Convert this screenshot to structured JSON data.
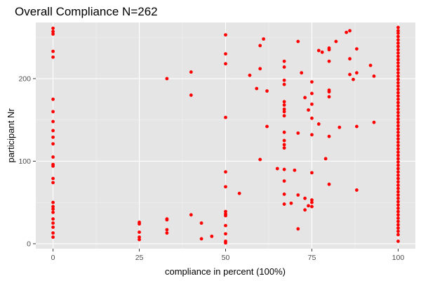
{
  "chart_data": {
    "type": "scatter",
    "title": "Overall Compliance N=262",
    "xlabel": "compliance in percent (100%)",
    "ylabel": "participant Nr",
    "xlim": [
      -5,
      105
    ],
    "ylim": [
      -6,
      268
    ],
    "x_ticks": [
      0,
      25,
      50,
      75,
      100
    ],
    "y_ticks": [
      0,
      100,
      200
    ],
    "grid": true,
    "legend": "none",
    "colors": {
      "point": "#ff0000",
      "panel": "#e5e5e5",
      "grid": "#ffffff"
    },
    "points": [
      [
        0,
        261
      ],
      [
        0,
        257
      ],
      [
        0,
        254
      ],
      [
        0,
        233
      ],
      [
        0,
        226
      ],
      [
        0,
        175
      ],
      [
        0,
        160
      ],
      [
        0,
        148
      ],
      [
        0,
        137
      ],
      [
        0,
        129
      ],
      [
        0,
        121
      ],
      [
        0,
        105
      ],
      [
        0,
        96
      ],
      [
        0,
        94
      ],
      [
        0,
        79
      ],
      [
        0,
        74
      ],
      [
        0,
        50
      ],
      [
        0,
        45
      ],
      [
        0,
        42
      ],
      [
        0,
        38
      ],
      [
        0,
        30
      ],
      [
        0,
        25
      ],
      [
        0,
        20
      ],
      [
        0,
        13
      ],
      [
        0,
        8
      ],
      [
        25,
        26
      ],
      [
        25,
        24
      ],
      [
        25,
        14
      ],
      [
        25,
        8
      ],
      [
        25,
        5
      ],
      [
        33,
        200
      ],
      [
        33,
        30
      ],
      [
        33,
        29
      ],
      [
        33,
        17
      ],
      [
        33,
        13
      ],
      [
        40,
        208
      ],
      [
        40,
        180
      ],
      [
        40,
        35
      ],
      [
        43,
        25
      ],
      [
        43,
        6
      ],
      [
        46,
        9
      ],
      [
        50,
        253
      ],
      [
        50,
        230
      ],
      [
        50,
        218
      ],
      [
        50,
        153
      ],
      [
        50,
        87
      ],
      [
        50,
        69
      ],
      [
        50,
        39
      ],
      [
        50,
        36
      ],
      [
        50,
        34
      ],
      [
        50,
        22
      ],
      [
        50,
        12
      ],
      [
        50,
        3
      ],
      [
        50,
        1
      ],
      [
        54,
        61
      ],
      [
        57,
        204
      ],
      [
        59,
        188
      ],
      [
        60,
        240
      ],
      [
        60,
        212
      ],
      [
        60,
        102
      ],
      [
        61,
        248
      ],
      [
        62,
        185
      ],
      [
        62,
        142
      ],
      [
        65,
        91
      ],
      [
        67,
        221
      ],
      [
        67,
        214
      ],
      [
        67,
        198
      ],
      [
        67,
        193
      ],
      [
        67,
        172
      ],
      [
        67,
        168
      ],
      [
        67,
        163
      ],
      [
        67,
        160
      ],
      [
        67,
        155
      ],
      [
        67,
        135
      ],
      [
        67,
        125
      ],
      [
        67,
        120
      ],
      [
        67,
        116
      ],
      [
        67,
        90
      ],
      [
        67,
        76
      ],
      [
        67,
        60
      ],
      [
        67,
        48
      ],
      [
        69,
        49
      ],
      [
        70,
        89
      ],
      [
        71,
        245
      ],
      [
        71,
        134
      ],
      [
        71,
        18
      ],
      [
        71,
        59
      ],
      [
        72,
        207
      ],
      [
        73,
        177
      ],
      [
        73,
        41
      ],
      [
        73,
        55
      ],
      [
        74,
        162
      ],
      [
        74,
        46
      ],
      [
        75,
        196
      ],
      [
        75,
        182
      ],
      [
        75,
        169
      ],
      [
        75,
        152
      ],
      [
        75,
        132
      ],
      [
        75,
        86
      ],
      [
        75,
        53
      ],
      [
        75,
        50
      ],
      [
        75,
        45
      ],
      [
        77,
        234
      ],
      [
        77,
        145
      ],
      [
        78,
        232
      ],
      [
        79,
        103
      ],
      [
        80,
        237
      ],
      [
        80,
        235
      ],
      [
        80,
        221
      ],
      [
        80,
        186
      ],
      [
        80,
        184
      ],
      [
        80,
        178
      ],
      [
        80,
        130
      ],
      [
        80,
        72
      ],
      [
        82,
        245
      ],
      [
        83,
        141
      ],
      [
        85,
        256
      ],
      [
        86,
        258
      ],
      [
        86,
        224
      ],
      [
        86,
        205
      ],
      [
        87,
        199
      ],
      [
        88,
        236
      ],
      [
        88,
        207
      ],
      [
        88,
        142
      ],
      [
        88,
        65
      ],
      [
        92,
        216
      ],
      [
        93,
        203
      ],
      [
        93,
        147
      ],
      [
        100,
        262
      ],
      [
        100,
        258
      ],
      [
        100,
        255
      ],
      [
        100,
        251
      ],
      [
        100,
        247
      ],
      [
        100,
        243
      ],
      [
        100,
        239
      ],
      [
        100,
        235
      ],
      [
        100,
        231
      ],
      [
        100,
        227
      ],
      [
        100,
        223
      ],
      [
        100,
        219
      ],
      [
        100,
        215
      ],
      [
        100,
        211
      ],
      [
        100,
        207
      ],
      [
        100,
        203
      ],
      [
        100,
        199
      ],
      [
        100,
        195
      ],
      [
        100,
        191
      ],
      [
        100,
        187
      ],
      [
        100,
        183
      ],
      [
        100,
        179
      ],
      [
        100,
        175
      ],
      [
        100,
        171
      ],
      [
        100,
        167
      ],
      [
        100,
        163
      ],
      [
        100,
        159
      ],
      [
        100,
        155
      ],
      [
        100,
        151
      ],
      [
        100,
        147
      ],
      [
        100,
        143
      ],
      [
        100,
        139
      ],
      [
        100,
        135
      ],
      [
        100,
        131
      ],
      [
        100,
        127
      ],
      [
        100,
        123
      ],
      [
        100,
        119
      ],
      [
        100,
        115
      ],
      [
        100,
        111
      ],
      [
        100,
        107
      ],
      [
        100,
        103
      ],
      [
        100,
        99
      ],
      [
        100,
        95
      ],
      [
        100,
        91
      ],
      [
        100,
        87
      ],
      [
        100,
        83
      ],
      [
        100,
        79
      ],
      [
        100,
        75
      ],
      [
        100,
        71
      ],
      [
        100,
        67
      ],
      [
        100,
        63
      ],
      [
        100,
        59
      ],
      [
        100,
        55
      ],
      [
        100,
        51
      ],
      [
        100,
        47
      ],
      [
        100,
        43
      ],
      [
        100,
        39
      ],
      [
        100,
        35
      ],
      [
        100,
        31
      ],
      [
        100,
        27
      ],
      [
        100,
        23
      ],
      [
        100,
        19
      ],
      [
        100,
        15
      ],
      [
        100,
        11
      ],
      [
        100,
        3
      ]
    ]
  }
}
